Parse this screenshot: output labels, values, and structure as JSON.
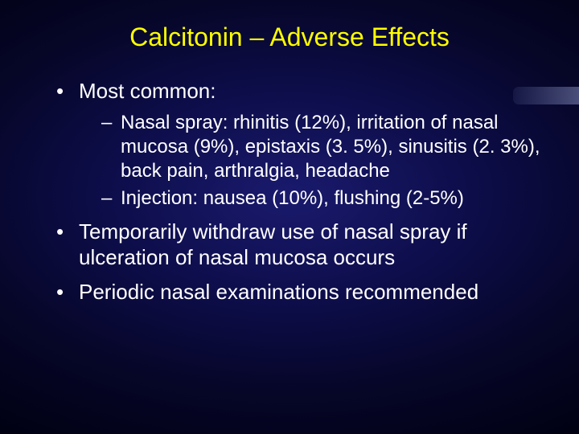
{
  "slide": {
    "title": "Calcitonin – Adverse Effects",
    "title_color": "#ffff00",
    "title_fontsize": 32,
    "body_color": "#ffffff",
    "body_fontsize_l1": 26,
    "body_fontsize_l2": 24,
    "background": {
      "type": "radial-gradient",
      "center_color": "#1a1a6e",
      "mid_color": "#0d0d4a",
      "outer_color": "#000010"
    },
    "accent_bar_color": "rgba(130,140,190,0.55)",
    "bullets": {
      "b1": {
        "text": "Most common:",
        "sub": {
          "s1": "Nasal spray: rhinitis (12%), irritation of nasal mucosa (9%), epistaxis (3. 5%), sinusitis (2. 3%), back pain, arthralgia, headache",
          "s2": "Injection: nausea (10%), flushing (2-5%)"
        }
      },
      "b2": {
        "text": "Temporarily withdraw use of nasal spray if ulceration of nasal mucosa occurs"
      },
      "b3": {
        "text": "Periodic nasal examinations recommended"
      }
    }
  }
}
